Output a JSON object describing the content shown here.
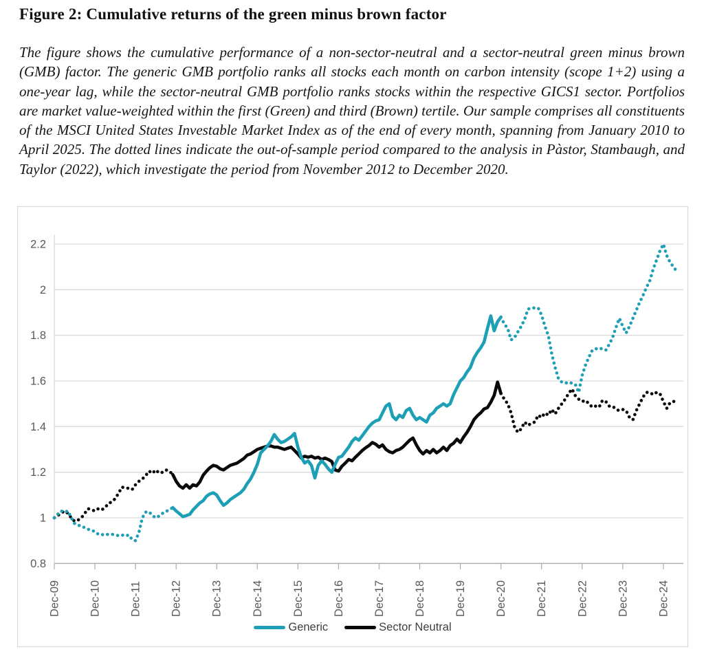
{
  "figure": {
    "title": "Figure 2: Cumulative returns of the green minus brown factor",
    "caption": "The figure shows the cumulative performance of a non-sector-neutral and a sector-neutral green minus brown (GMB) factor. The generic GMB portfolio ranks all stocks each month on carbon intensity (scope 1+2) using a one-year lag, while the sector-neutral GMB portfolio ranks stocks within the respective GICS1 sector. Portfolios are market value-weighted within the first (Green) and third (Brown) tertile. Our sample comprises all constituents of the MSCI United States Investable Market Index as of the end of every month, spanning from January 2010 to April 2025. The dotted lines indicate the out-of-sample period compared to the analysis in Pàstor, Stambaugh, and Taylor (2022), which investigate the period from November 2012 to December 2020."
  },
  "chart_data": {
    "type": "line",
    "x_start_label": "Dec-09",
    "x_end_label": "Apr-25",
    "points_per_series": 185,
    "x_unit": "month",
    "x_tick_every_months": 12,
    "x_tick_labels": [
      "Dec-09",
      "Dec-10",
      "Dec-11",
      "Dec-12",
      "Dec-13",
      "Dec-14",
      "Dec-15",
      "Dec-16",
      "Dec-17",
      "Dec-18",
      "Dec-19",
      "Dec-20",
      "Dec-21",
      "Dec-22",
      "Dec-23",
      "Dec-24"
    ],
    "y_tick_labels": [
      "0.8",
      "1",
      "1.2",
      "1.4",
      "1.6",
      "1.8",
      "2",
      "2.2"
    ],
    "ylim": [
      0.8,
      2.2
    ],
    "grid": "horizontal",
    "legend_position": "bottom-center",
    "solid_segment": {
      "from_label": "Nov-12",
      "to_label": "Dec-20",
      "from_index": 35,
      "to_index": 132,
      "meaning": "dotted portions are the out-of-sample period vs Pastor, Stambaugh, and Taylor (2022)"
    },
    "series": [
      {
        "name": "Generic",
        "color": "#1d9fb5",
        "values": [
          1.0,
          1.015,
          1.03,
          1.025,
          1.03,
          1.0,
          0.975,
          0.97,
          0.96,
          0.958,
          0.95,
          0.945,
          0.94,
          0.928,
          0.925,
          0.93,
          0.926,
          0.928,
          0.925,
          0.922,
          0.925,
          0.92,
          0.925,
          0.905,
          0.9,
          0.935,
          1.0,
          1.025,
          1.027,
          1.01,
          1.0,
          1.008,
          1.02,
          1.028,
          1.035,
          1.045,
          1.03,
          1.018,
          1.005,
          1.01,
          1.015,
          1.035,
          1.05,
          1.065,
          1.075,
          1.095,
          1.105,
          1.11,
          1.1,
          1.075,
          1.055,
          1.065,
          1.08,
          1.09,
          1.1,
          1.11,
          1.125,
          1.15,
          1.17,
          1.2,
          1.235,
          1.285,
          1.3,
          1.315,
          1.335,
          1.365,
          1.345,
          1.33,
          1.335,
          1.345,
          1.355,
          1.37,
          1.31,
          1.265,
          1.24,
          1.25,
          1.23,
          1.175,
          1.23,
          1.25,
          1.235,
          1.215,
          1.2,
          1.235,
          1.265,
          1.27,
          1.29,
          1.31,
          1.335,
          1.35,
          1.34,
          1.36,
          1.38,
          1.4,
          1.415,
          1.425,
          1.43,
          1.46,
          1.49,
          1.5,
          1.445,
          1.43,
          1.45,
          1.44,
          1.47,
          1.48,
          1.45,
          1.43,
          1.44,
          1.43,
          1.42,
          1.45,
          1.46,
          1.48,
          1.49,
          1.5,
          1.49,
          1.5,
          1.54,
          1.57,
          1.6,
          1.615,
          1.64,
          1.66,
          1.7,
          1.725,
          1.745,
          1.77,
          1.83,
          1.885,
          1.82,
          1.86,
          1.88,
          1.85,
          1.83,
          1.78,
          1.79,
          1.815,
          1.84,
          1.87,
          1.915,
          1.92,
          1.92,
          1.92,
          1.89,
          1.84,
          1.8,
          1.72,
          1.66,
          1.61,
          1.595,
          1.59,
          1.595,
          1.59,
          1.585,
          1.55,
          1.625,
          1.67,
          1.705,
          1.735,
          1.74,
          1.745,
          1.74,
          1.735,
          1.76,
          1.79,
          1.835,
          1.875,
          1.84,
          1.81,
          1.84,
          1.875,
          1.91,
          1.945,
          1.975,
          2.01,
          2.04,
          2.09,
          2.13,
          2.17,
          2.2,
          2.15,
          2.12,
          2.1,
          2.08
        ]
      },
      {
        "name": "Sector Neutral",
        "color": "#0a0a0a",
        "values": [
          1.0,
          1.01,
          1.02,
          1.03,
          1.02,
          1.0,
          0.985,
          0.99,
          1.0,
          1.02,
          1.04,
          1.035,
          1.03,
          1.04,
          1.035,
          1.045,
          1.063,
          1.07,
          1.084,
          1.108,
          1.135,
          1.13,
          1.13,
          1.124,
          1.145,
          1.16,
          1.17,
          1.185,
          1.205,
          1.195,
          1.21,
          1.196,
          1.2,
          1.21,
          1.205,
          1.19,
          1.16,
          1.14,
          1.13,
          1.145,
          1.13,
          1.145,
          1.14,
          1.157,
          1.187,
          1.205,
          1.22,
          1.23,
          1.226,
          1.215,
          1.21,
          1.22,
          1.23,
          1.235,
          1.24,
          1.25,
          1.26,
          1.275,
          1.28,
          1.29,
          1.3,
          1.305,
          1.31,
          1.315,
          1.315,
          1.31,
          1.31,
          1.305,
          1.3,
          1.305,
          1.31,
          1.295,
          1.28,
          1.262,
          1.27,
          1.266,
          1.27,
          1.262,
          1.266,
          1.256,
          1.262,
          1.256,
          1.247,
          1.21,
          1.205,
          1.226,
          1.24,
          1.256,
          1.25,
          1.266,
          1.28,
          1.295,
          1.307,
          1.317,
          1.33,
          1.323,
          1.31,
          1.32,
          1.3,
          1.29,
          1.285,
          1.295,
          1.3,
          1.31,
          1.325,
          1.34,
          1.35,
          1.32,
          1.295,
          1.28,
          1.295,
          1.285,
          1.3,
          1.285,
          1.295,
          1.31,
          1.295,
          1.317,
          1.327,
          1.345,
          1.33,
          1.355,
          1.375,
          1.4,
          1.43,
          1.447,
          1.46,
          1.477,
          1.483,
          1.507,
          1.537,
          1.595,
          1.545,
          1.52,
          1.5,
          1.46,
          1.4,
          1.375,
          1.39,
          1.42,
          1.405,
          1.415,
          1.42,
          1.45,
          1.44,
          1.46,
          1.45,
          1.475,
          1.455,
          1.48,
          1.5,
          1.52,
          1.545,
          1.565,
          1.535,
          1.52,
          1.51,
          1.515,
          1.5,
          1.485,
          1.49,
          1.485,
          1.515,
          1.51,
          1.49,
          1.49,
          1.475,
          1.47,
          1.475,
          1.47,
          1.44,
          1.43,
          1.47,
          1.5,
          1.53,
          1.55,
          1.55,
          1.54,
          1.55,
          1.545,
          1.51,
          1.48,
          1.505,
          1.51,
          1.51
        ]
      }
    ]
  },
  "legend": {
    "items": [
      {
        "label": "Generic",
        "color": "#1d9fb5"
      },
      {
        "label": "Sector Neutral",
        "color": "#0a0a0a"
      }
    ]
  },
  "style": {
    "grid_color": "#d9d9d9",
    "axis_color": "#b3b3b3",
    "tick_text_color": "#595959",
    "legend_text_color": "#3f3f3f",
    "chart_border_color": "#d6d6d6",
    "background": "#ffffff"
  }
}
